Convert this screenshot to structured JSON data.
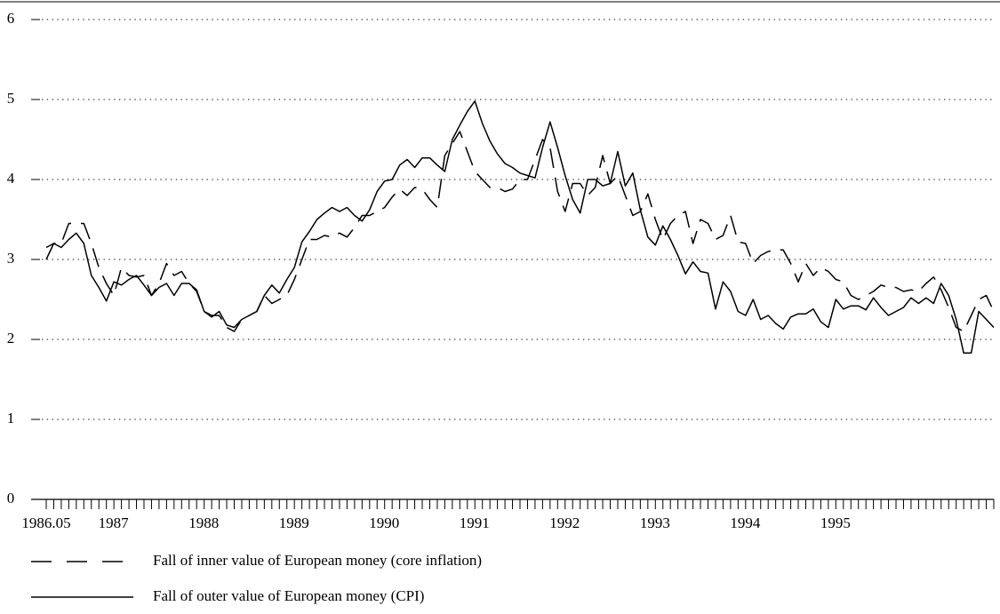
{
  "chart_data": {
    "type": "line",
    "x": [
      "1986.05",
      "1986.06",
      "1986.07",
      "1986.08",
      "1986.09",
      "1986.10",
      "1986.11",
      "1986.12",
      "1987.01",
      "1987.02",
      "1987.03",
      "1987.04",
      "1987.05",
      "1987.06",
      "1987.07",
      "1987.08",
      "1987.09",
      "1987.10",
      "1987.11",
      "1987.12",
      "1988.01",
      "1988.02",
      "1988.03",
      "1988.04",
      "1988.05",
      "1988.06",
      "1988.07",
      "1988.08",
      "1988.09",
      "1988.10",
      "1988.11",
      "1988.12",
      "1989.01",
      "1989.02",
      "1989.03",
      "1989.04",
      "1989.05",
      "1989.06",
      "1989.07",
      "1989.08",
      "1989.09",
      "1989.10",
      "1989.11",
      "1989.12",
      "1990.01",
      "1990.02",
      "1990.03",
      "1990.04",
      "1990.05",
      "1990.06",
      "1990.07",
      "1990.08",
      "1990.09",
      "1990.10",
      "1990.11",
      "1990.12",
      "1991.01",
      "1991.02",
      "1991.03",
      "1991.04",
      "1991.05",
      "1991.06",
      "1991.07",
      "1991.08",
      "1991.09",
      "1991.10",
      "1991.11",
      "1991.12",
      "1992.01",
      "1992.02",
      "1992.03",
      "1992.04",
      "1992.05",
      "1992.06",
      "1992.07",
      "1992.08",
      "1992.09",
      "1992.10",
      "1992.11",
      "1992.12",
      "1993.01",
      "1993.02",
      "1993.03",
      "1993.04",
      "1993.05",
      "1993.06",
      "1993.07",
      "1993.08",
      "1993.09",
      "1993.10",
      "1993.11",
      "1993.12",
      "1994.01",
      "1994.02",
      "1994.03",
      "1994.04",
      "1994.05",
      "1994.06",
      "1994.07",
      "1994.08",
      "1994.09",
      "1994.10",
      "1994.11",
      "1994.12",
      "1995.01",
      "1995.02",
      "1995.03",
      "1995.04",
      "1995.05",
      "1995.06",
      "1995.07",
      "1995.08",
      "1995.09",
      "1995.10",
      "1995.11",
      "1995.12",
      "1996.01",
      "1996.02",
      "1996.03",
      "1996.04",
      "1996.05",
      "1996.06",
      "1996.07",
      "1996.08",
      "1996.09",
      "1996.10",
      "1996.11"
    ],
    "xticks": [
      "1986.05",
      {
        "value": "1987.01",
        "label": "1987"
      },
      {
        "value": "1988.01",
        "label": "1988"
      },
      {
        "value": "1989.01",
        "label": "1989"
      },
      {
        "value": "1990.01",
        "label": "1990"
      },
      {
        "value": "1991.01",
        "label": "1991"
      },
      {
        "value": "1992.01",
        "label": "1992"
      },
      {
        "value": "1993.01",
        "label": "1993"
      },
      {
        "value": "1994.01",
        "label": "1994"
      },
      {
        "value": "1995.01",
        "label": "1995"
      }
    ],
    "ylim": [
      0,
      6
    ],
    "yticks": [
      0,
      1,
      2,
      3,
      4,
      5,
      6
    ],
    "grid": true,
    "series": [
      {
        "name": "Fall of inner value of European money  (core inflation)",
        "color": "#000000",
        "line_style": "dashed",
        "values": [
          3.0,
          3.2,
          3.2,
          3.45,
          3.45,
          3.45,
          3.2,
          2.9,
          2.7,
          2.55,
          2.9,
          2.8,
          2.78,
          2.8,
          2.55,
          2.7,
          2.95,
          2.8,
          2.85,
          2.7,
          2.6,
          2.35,
          2.3,
          2.3,
          2.15,
          2.1,
          2.25,
          2.3,
          2.35,
          2.55,
          2.45,
          2.5,
          2.55,
          2.75,
          3.0,
          3.25,
          3.25,
          3.3,
          3.28,
          3.33,
          3.28,
          3.4,
          3.55,
          3.55,
          3.6,
          3.65,
          3.78,
          3.88,
          3.8,
          3.9,
          3.88,
          3.75,
          3.65,
          4.3,
          4.45,
          4.6,
          4.35,
          4.1,
          4.0,
          3.9,
          3.9,
          3.85,
          3.88,
          4.0,
          4.0,
          4.25,
          4.5,
          4.4,
          3.85,
          3.6,
          3.95,
          3.95,
          3.8,
          3.9,
          4.3,
          3.95,
          4.05,
          3.8,
          3.55,
          3.6,
          3.82,
          3.5,
          3.25,
          3.45,
          3.55,
          3.6,
          3.2,
          3.5,
          3.45,
          3.25,
          3.3,
          3.55,
          3.22,
          3.2,
          2.95,
          3.05,
          3.1,
          3.12,
          3.12,
          2.95,
          2.72,
          2.95,
          2.8,
          2.9,
          2.85,
          2.75,
          2.72,
          2.55,
          2.5,
          2.55,
          2.6,
          2.68,
          2.65,
          2.65,
          2.6,
          2.62,
          2.6,
          2.7,
          2.78,
          2.62,
          2.4,
          2.15,
          2.1,
          2.3,
          2.5,
          2.55,
          2.35
        ]
      },
      {
        "name": "Fall of outer value of European money (CPI)",
        "color": "#000000",
        "line_style": "solid",
        "values": [
          3.15,
          3.2,
          3.15,
          3.25,
          3.33,
          3.2,
          2.8,
          2.65,
          2.48,
          2.72,
          2.68,
          2.75,
          2.8,
          2.68,
          2.55,
          2.65,
          2.7,
          2.55,
          2.7,
          2.7,
          2.62,
          2.35,
          2.28,
          2.35,
          2.18,
          2.15,
          2.25,
          2.3,
          2.35,
          2.55,
          2.68,
          2.58,
          2.75,
          2.9,
          3.22,
          3.35,
          3.5,
          3.58,
          3.65,
          3.6,
          3.65,
          3.55,
          3.48,
          3.62,
          3.85,
          3.98,
          4.0,
          4.18,
          4.25,
          4.15,
          4.27,
          4.27,
          4.18,
          4.1,
          4.5,
          4.68,
          4.85,
          4.98,
          4.7,
          4.48,
          4.32,
          4.2,
          4.15,
          4.08,
          4.05,
          4.02,
          4.4,
          4.72,
          4.4,
          4.05,
          3.75,
          3.58,
          4.0,
          4.0,
          3.92,
          3.95,
          4.35,
          3.92,
          4.08,
          3.62,
          3.28,
          3.18,
          3.42,
          3.25,
          3.05,
          2.82,
          2.97,
          2.85,
          2.83,
          2.38,
          2.72,
          2.6,
          2.35,
          2.3,
          2.5,
          2.25,
          2.3,
          2.2,
          2.13,
          2.28,
          2.32,
          2.32,
          2.38,
          2.22,
          2.15,
          2.5,
          2.38,
          2.42,
          2.42,
          2.37,
          2.52,
          2.4,
          2.3,
          2.35,
          2.4,
          2.52,
          2.45,
          2.52,
          2.45,
          2.7,
          2.55,
          2.25,
          1.83,
          1.83,
          2.35,
          2.25,
          2.15
        ]
      }
    ]
  }
}
